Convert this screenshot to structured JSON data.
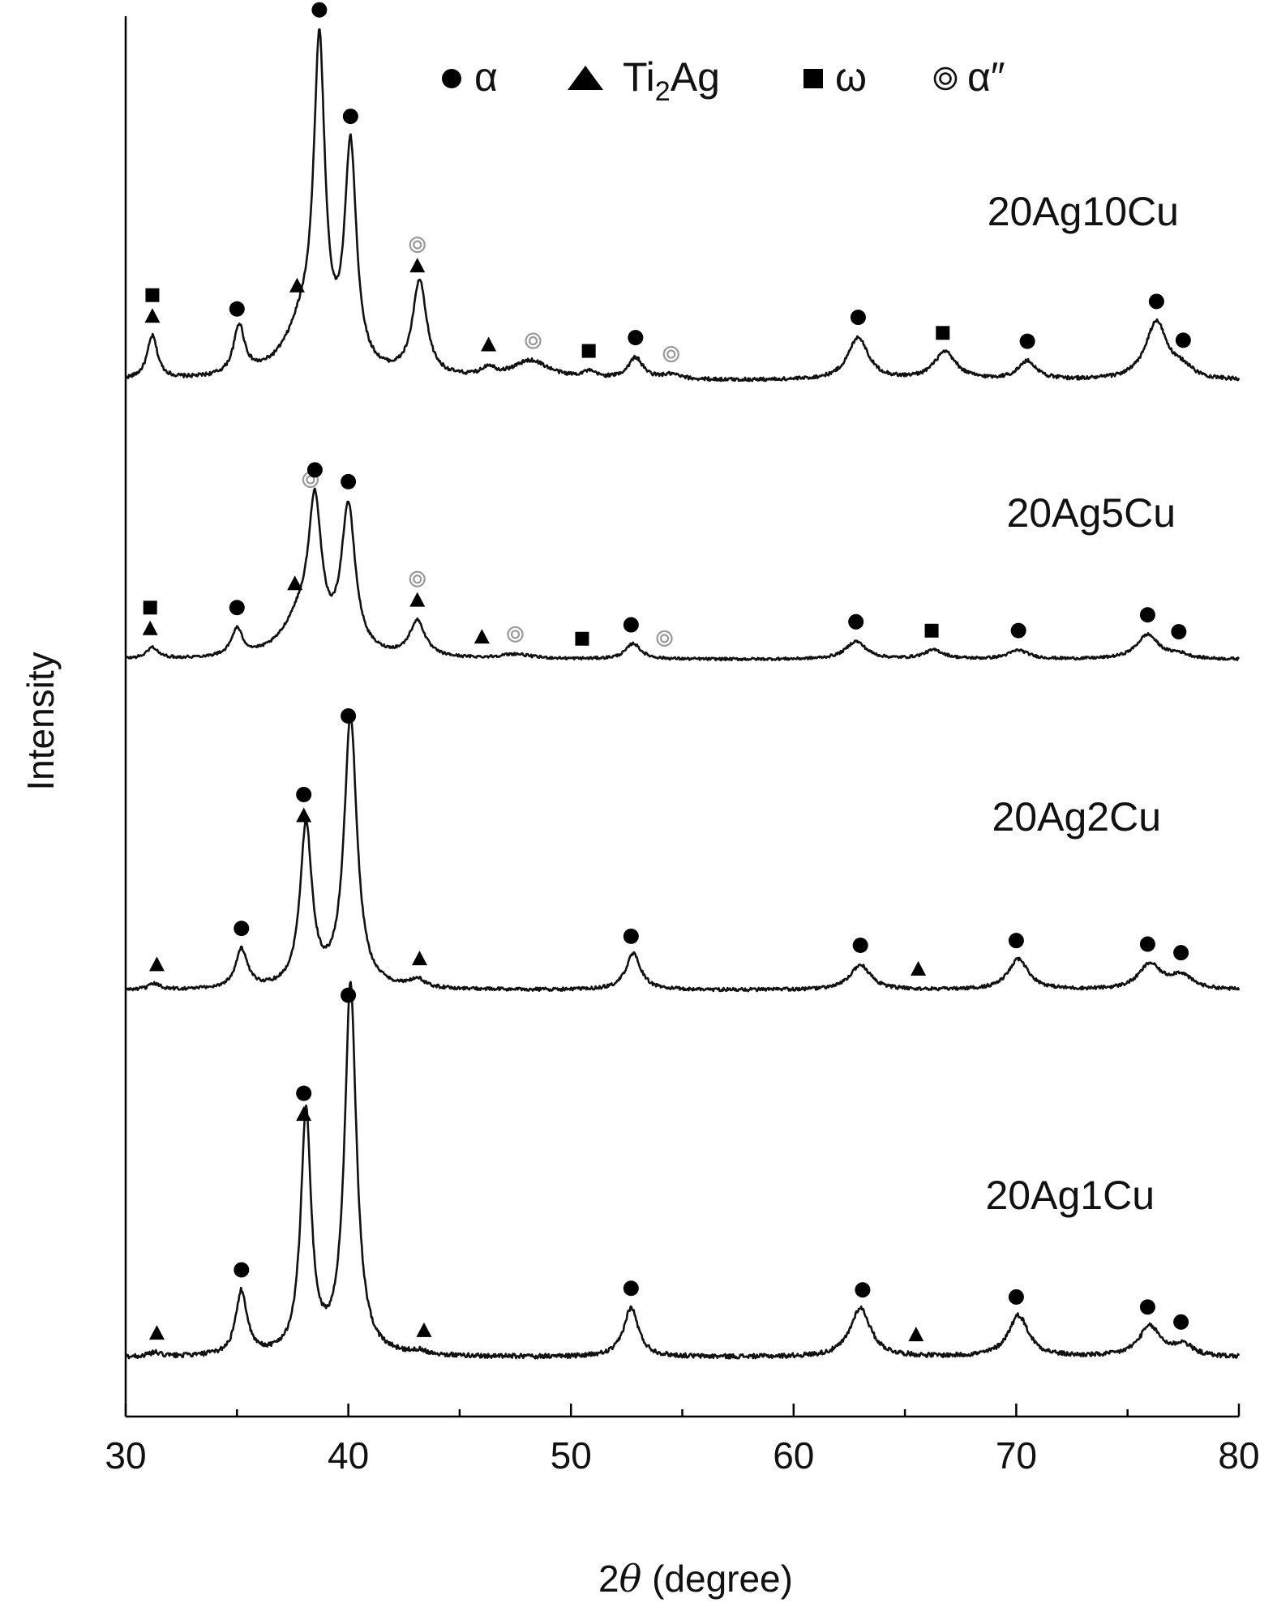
{
  "chart_data": {
    "type": "line",
    "xlabel_prefix": "2",
    "xlabel_theta": "θ",
    "xlabel_suffix": " (degree)",
    "ylabel": "Intensity",
    "xlim": [
      30,
      80
    ],
    "xticks": [
      30,
      40,
      50,
      60,
      70,
      80
    ],
    "y_ticks_labeled": false,
    "grid": false,
    "legend": {
      "placement": "top-center",
      "entries": [
        {
          "marker": "circle",
          "label": "α"
        },
        {
          "marker": "triangle",
          "label_main": "Ti",
          "label_sub": "2",
          "label_tail": "Ag"
        },
        {
          "marker": "square",
          "label": "ω"
        },
        {
          "marker": "double-circle",
          "label": "α″"
        }
      ]
    },
    "colors": {
      "line": "#111111",
      "marker": "#000000",
      "alpha_double_prime": "#9a9a9a"
    },
    "series": [
      {
        "name": "20Ag10Cu",
        "baseline_index": 0,
        "peaks": [
          {
            "x": 31.2,
            "h": 0.14,
            "w": 0.28
          },
          {
            "x": 35.1,
            "h": 0.16,
            "w": 0.3
          },
          {
            "x": 38.0,
            "h": 0.16,
            "w": 1.0
          },
          {
            "x": 38.7,
            "h": 1.0,
            "w": 0.3
          },
          {
            "x": 40.1,
            "h": 0.72,
            "w": 0.32
          },
          {
            "x": 43.2,
            "h": 0.31,
            "w": 0.38
          },
          {
            "x": 46.3,
            "h": 0.03,
            "w": 0.35
          },
          {
            "x": 48.2,
            "h": 0.06,
            "w": 1.0
          },
          {
            "x": 50.8,
            "h": 0.02,
            "w": 0.4
          },
          {
            "x": 52.9,
            "h": 0.07,
            "w": 0.4
          },
          {
            "x": 54.5,
            "h": 0.015,
            "w": 0.5
          },
          {
            "x": 62.9,
            "h": 0.14,
            "w": 0.55
          },
          {
            "x": 66.8,
            "h": 0.09,
            "w": 0.6
          },
          {
            "x": 70.5,
            "h": 0.06,
            "w": 0.5
          },
          {
            "x": 76.3,
            "h": 0.19,
            "w": 0.6
          },
          {
            "x": 77.5,
            "h": 0.03,
            "w": 0.5
          }
        ],
        "markers": [
          {
            "x": 38.7,
            "type": "double-circle"
          },
          {
            "x": 38.7,
            "type": "circle"
          },
          {
            "x": 40.1,
            "type": "circle"
          },
          {
            "x": 37.7,
            "type": "triangle"
          },
          {
            "x": 43.1,
            "type": "double-circle"
          },
          {
            "x": 43.1,
            "type": "triangle"
          },
          {
            "x": 31.2,
            "type": "square"
          },
          {
            "x": 31.2,
            "type": "triangle"
          },
          {
            "x": 35.0,
            "type": "circle"
          },
          {
            "x": 46.3,
            "type": "triangle"
          },
          {
            "x": 48.3,
            "type": "double-circle"
          },
          {
            "x": 50.8,
            "type": "square"
          },
          {
            "x": 52.9,
            "type": "circle"
          },
          {
            "x": 54.5,
            "type": "double-circle"
          },
          {
            "x": 62.9,
            "type": "circle"
          },
          {
            "x": 66.7,
            "type": "square"
          },
          {
            "x": 70.5,
            "type": "circle"
          },
          {
            "x": 76.3,
            "type": "circle"
          },
          {
            "x": 77.5,
            "type": "circle"
          }
        ]
      },
      {
        "name": "20Ag5Cu",
        "baseline_index": 1,
        "peaks": [
          {
            "x": 31.2,
            "h": 0.05,
            "w": 0.3
          },
          {
            "x": 35.0,
            "h": 0.12,
            "w": 0.3
          },
          {
            "x": 37.8,
            "h": 0.16,
            "w": 0.9
          },
          {
            "x": 38.5,
            "h": 0.62,
            "w": 0.35
          },
          {
            "x": 40.0,
            "h": 0.65,
            "w": 0.38
          },
          {
            "x": 43.1,
            "h": 0.16,
            "w": 0.42
          },
          {
            "x": 47.5,
            "h": 0.02,
            "w": 0.8
          },
          {
            "x": 52.8,
            "h": 0.07,
            "w": 0.4
          },
          {
            "x": 62.8,
            "h": 0.08,
            "w": 0.55
          },
          {
            "x": 66.3,
            "h": 0.04,
            "w": 0.55
          },
          {
            "x": 70.1,
            "h": 0.04,
            "w": 0.55
          },
          {
            "x": 75.9,
            "h": 0.11,
            "w": 0.6
          },
          {
            "x": 77.3,
            "h": 0.02,
            "w": 0.5
          }
        ],
        "markers": [
          {
            "x": 38.3,
            "type": "double-circle"
          },
          {
            "x": 38.5,
            "type": "circle"
          },
          {
            "x": 40.0,
            "type": "circle"
          },
          {
            "x": 37.6,
            "type": "triangle"
          },
          {
            "x": 43.1,
            "type": "double-circle"
          },
          {
            "x": 43.1,
            "type": "triangle"
          },
          {
            "x": 31.1,
            "type": "square"
          },
          {
            "x": 31.1,
            "type": "triangle"
          },
          {
            "x": 35.0,
            "type": "circle"
          },
          {
            "x": 46.0,
            "type": "triangle"
          },
          {
            "x": 47.5,
            "type": "double-circle"
          },
          {
            "x": 50.5,
            "type": "square"
          },
          {
            "x": 52.7,
            "type": "circle"
          },
          {
            "x": 54.2,
            "type": "double-circle"
          },
          {
            "x": 62.8,
            "type": "circle"
          },
          {
            "x": 66.2,
            "type": "square"
          },
          {
            "x": 70.1,
            "type": "circle"
          },
          {
            "x": 75.9,
            "type": "circle"
          },
          {
            "x": 77.3,
            "type": "circle"
          }
        ]
      },
      {
        "name": "20Ag2Cu",
        "baseline_index": 2,
        "peaks": [
          {
            "x": 31.3,
            "h": 0.02,
            "w": 0.3
          },
          {
            "x": 35.2,
            "h": 0.14,
            "w": 0.32
          },
          {
            "x": 38.1,
            "h": 0.58,
            "w": 0.32
          },
          {
            "x": 40.1,
            "h": 0.97,
            "w": 0.35
          },
          {
            "x": 43.1,
            "h": 0.03,
            "w": 0.4
          },
          {
            "x": 52.8,
            "h": 0.13,
            "w": 0.4
          },
          {
            "x": 63.0,
            "h": 0.09,
            "w": 0.55
          },
          {
            "x": 70.1,
            "h": 0.11,
            "w": 0.55
          },
          {
            "x": 76.0,
            "h": 0.09,
            "w": 0.6
          },
          {
            "x": 77.4,
            "h": 0.05,
            "w": 0.6
          }
        ],
        "markers": [
          {
            "x": 40.0,
            "type": "circle"
          },
          {
            "x": 38.0,
            "type": "circle"
          },
          {
            "x": 38.0,
            "type": "triangle"
          },
          {
            "x": 31.4,
            "type": "triangle"
          },
          {
            "x": 35.2,
            "type": "circle"
          },
          {
            "x": 43.2,
            "type": "triangle"
          },
          {
            "x": 52.7,
            "type": "circle"
          },
          {
            "x": 63.0,
            "type": "circle"
          },
          {
            "x": 65.6,
            "type": "triangle"
          },
          {
            "x": 70.0,
            "type": "circle"
          },
          {
            "x": 75.9,
            "type": "circle"
          },
          {
            "x": 77.4,
            "type": "circle"
          }
        ]
      },
      {
        "name": "20Ag1Cu",
        "baseline_index": 3,
        "peaks": [
          {
            "x": 31.3,
            "h": 0.01,
            "w": 0.3
          },
          {
            "x": 35.2,
            "h": 0.17,
            "w": 0.3
          },
          {
            "x": 38.1,
            "h": 0.64,
            "w": 0.28
          },
          {
            "x": 40.1,
            "h": 0.98,
            "w": 0.32
          },
          {
            "x": 43.2,
            "h": 0.01,
            "w": 0.4
          },
          {
            "x": 52.7,
            "h": 0.13,
            "w": 0.4
          },
          {
            "x": 63.0,
            "h": 0.13,
            "w": 0.55
          },
          {
            "x": 70.1,
            "h": 0.11,
            "w": 0.55
          },
          {
            "x": 76.0,
            "h": 0.08,
            "w": 0.6
          },
          {
            "x": 77.5,
            "h": 0.03,
            "w": 0.5
          }
        ],
        "markers": [
          {
            "x": 40.0,
            "type": "circle"
          },
          {
            "x": 38.0,
            "type": "circle"
          },
          {
            "x": 38.0,
            "type": "triangle"
          },
          {
            "x": 31.4,
            "type": "triangle"
          },
          {
            "x": 35.2,
            "type": "circle"
          },
          {
            "x": 43.4,
            "type": "triangle"
          },
          {
            "x": 52.7,
            "type": "circle"
          },
          {
            "x": 63.1,
            "type": "circle"
          },
          {
            "x": 65.5,
            "type": "triangle"
          },
          {
            "x": 70.0,
            "type": "circle"
          },
          {
            "x": 75.9,
            "type": "circle"
          },
          {
            "x": 77.4,
            "type": "circle"
          }
        ]
      }
    ]
  }
}
